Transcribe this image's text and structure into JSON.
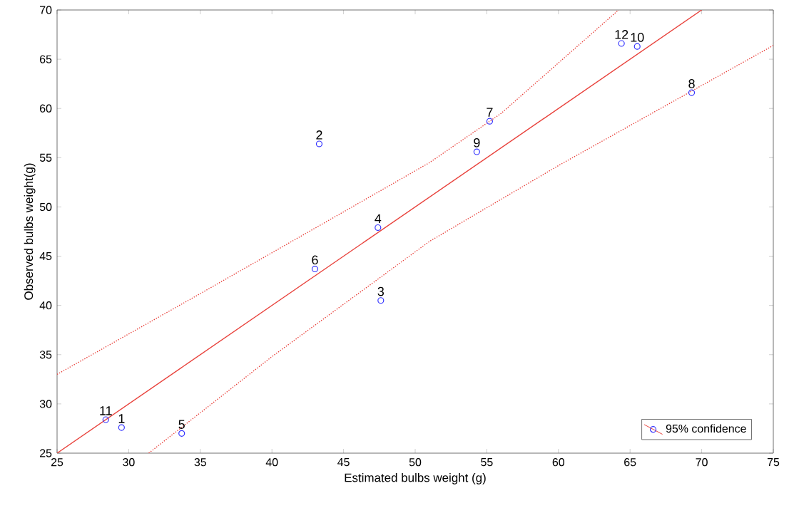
{
  "chart_data": {
    "type": "scatter",
    "xlabel": "Estimated bulbs weight (g)",
    "ylabel": "Observed bulbs weight(g)",
    "xlim": [
      25,
      75
    ],
    "ylim": [
      25,
      70
    ],
    "xticks": [
      25,
      30,
      35,
      40,
      45,
      50,
      55,
      60,
      65,
      70,
      75
    ],
    "yticks": [
      25,
      30,
      35,
      40,
      45,
      50,
      55,
      60,
      65,
      70
    ],
    "grid": false,
    "legend": "bottom right",
    "series": [
      {
        "name": "95% confidence",
        "marker": "circle",
        "color": "#3333ff",
        "x": [
          29.5,
          43.3,
          47.6,
          47.4,
          33.7,
          43.0,
          55.2,
          69.3,
          54.3,
          65.5,
          28.4,
          64.4
        ],
        "values": [
          27.6,
          56.4,
          40.5,
          47.9,
          27.0,
          43.7,
          58.7,
          61.6,
          55.6,
          66.3,
          28.4,
          66.6
        ]
      },
      {
        "type": "line",
        "marker": "none",
        "color": "#e8403a",
        "line_style": "solid",
        "x": [
          25,
          70
        ],
        "values": [
          25,
          70
        ]
      },
      {
        "type": "line",
        "marker": "none",
        "color": "#e8403a",
        "line_style": "dotted",
        "x": [
          25,
          35,
          45,
          51,
          56,
          64.2
        ],
        "values": [
          33.0,
          41.2,
          49.5,
          54.5,
          59.5,
          70
        ]
      },
      {
        "type": "line",
        "marker": "none",
        "color": "#e8403a",
        "line_style": "dotted",
        "x": [
          31.4,
          40,
          51,
          60,
          75
        ],
        "values": [
          25,
          34.8,
          46.5,
          54.2,
          66.4
        ]
      }
    ],
    "annotations": [
      {
        "text": "1",
        "x": 29.5,
        "y": 27.6
      },
      {
        "text": "2",
        "x": 43.3,
        "y": 56.4
      },
      {
        "text": "3",
        "x": 47.6,
        "y": 40.5
      },
      {
        "text": "4",
        "x": 47.4,
        "y": 47.9
      },
      {
        "text": "5",
        "x": 33.7,
        "y": 27.0
      },
      {
        "text": "6",
        "x": 43.0,
        "y": 43.7
      },
      {
        "text": "7",
        "x": 55.2,
        "y": 58.7
      },
      {
        "text": "8",
        "x": 69.3,
        "y": 61.6
      },
      {
        "text": "9",
        "x": 54.3,
        "y": 55.6
      },
      {
        "text": "10",
        "x": 65.5,
        "y": 66.3
      },
      {
        "text": "11",
        "x": 28.4,
        "y": 28.4
      },
      {
        "text": "12",
        "x": 64.4,
        "y": 66.6
      }
    ]
  }
}
